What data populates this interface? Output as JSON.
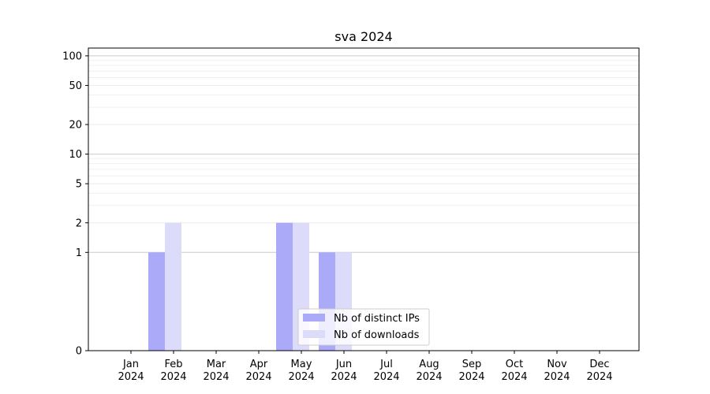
{
  "chart_data": {
    "type": "bar",
    "title": "sva 2024",
    "xlabel": "",
    "ylabel": "",
    "yscale": "symlog",
    "ylim": [
      0,
      120
    ],
    "yticks": [
      0,
      1,
      2,
      5,
      10,
      20,
      50,
      100
    ],
    "categories": [
      {
        "month": "Jan",
        "year": "2024"
      },
      {
        "month": "Feb",
        "year": "2024"
      },
      {
        "month": "Mar",
        "year": "2024"
      },
      {
        "month": "Apr",
        "year": "2024"
      },
      {
        "month": "May",
        "year": "2024"
      },
      {
        "month": "Jun",
        "year": "2024"
      },
      {
        "month": "Jul",
        "year": "2024"
      },
      {
        "month": "Aug",
        "year": "2024"
      },
      {
        "month": "Sep",
        "year": "2024"
      },
      {
        "month": "Oct",
        "year": "2024"
      },
      {
        "month": "Nov",
        "year": "2024"
      },
      {
        "month": "Dec",
        "year": "2024"
      }
    ],
    "series": [
      {
        "name": "Nb of distinct IPs",
        "color": "#aaaaf8",
        "values": [
          0,
          1,
          0,
          0,
          2,
          1,
          0,
          0,
          0,
          0,
          0,
          0
        ]
      },
      {
        "name": "Nb of downloads",
        "color": "#dcdcfa",
        "values": [
          0,
          2,
          0,
          0,
          2,
          1,
          0,
          0,
          0,
          0,
          0,
          0
        ]
      }
    ],
    "grid": true,
    "legend": "lower-center"
  }
}
